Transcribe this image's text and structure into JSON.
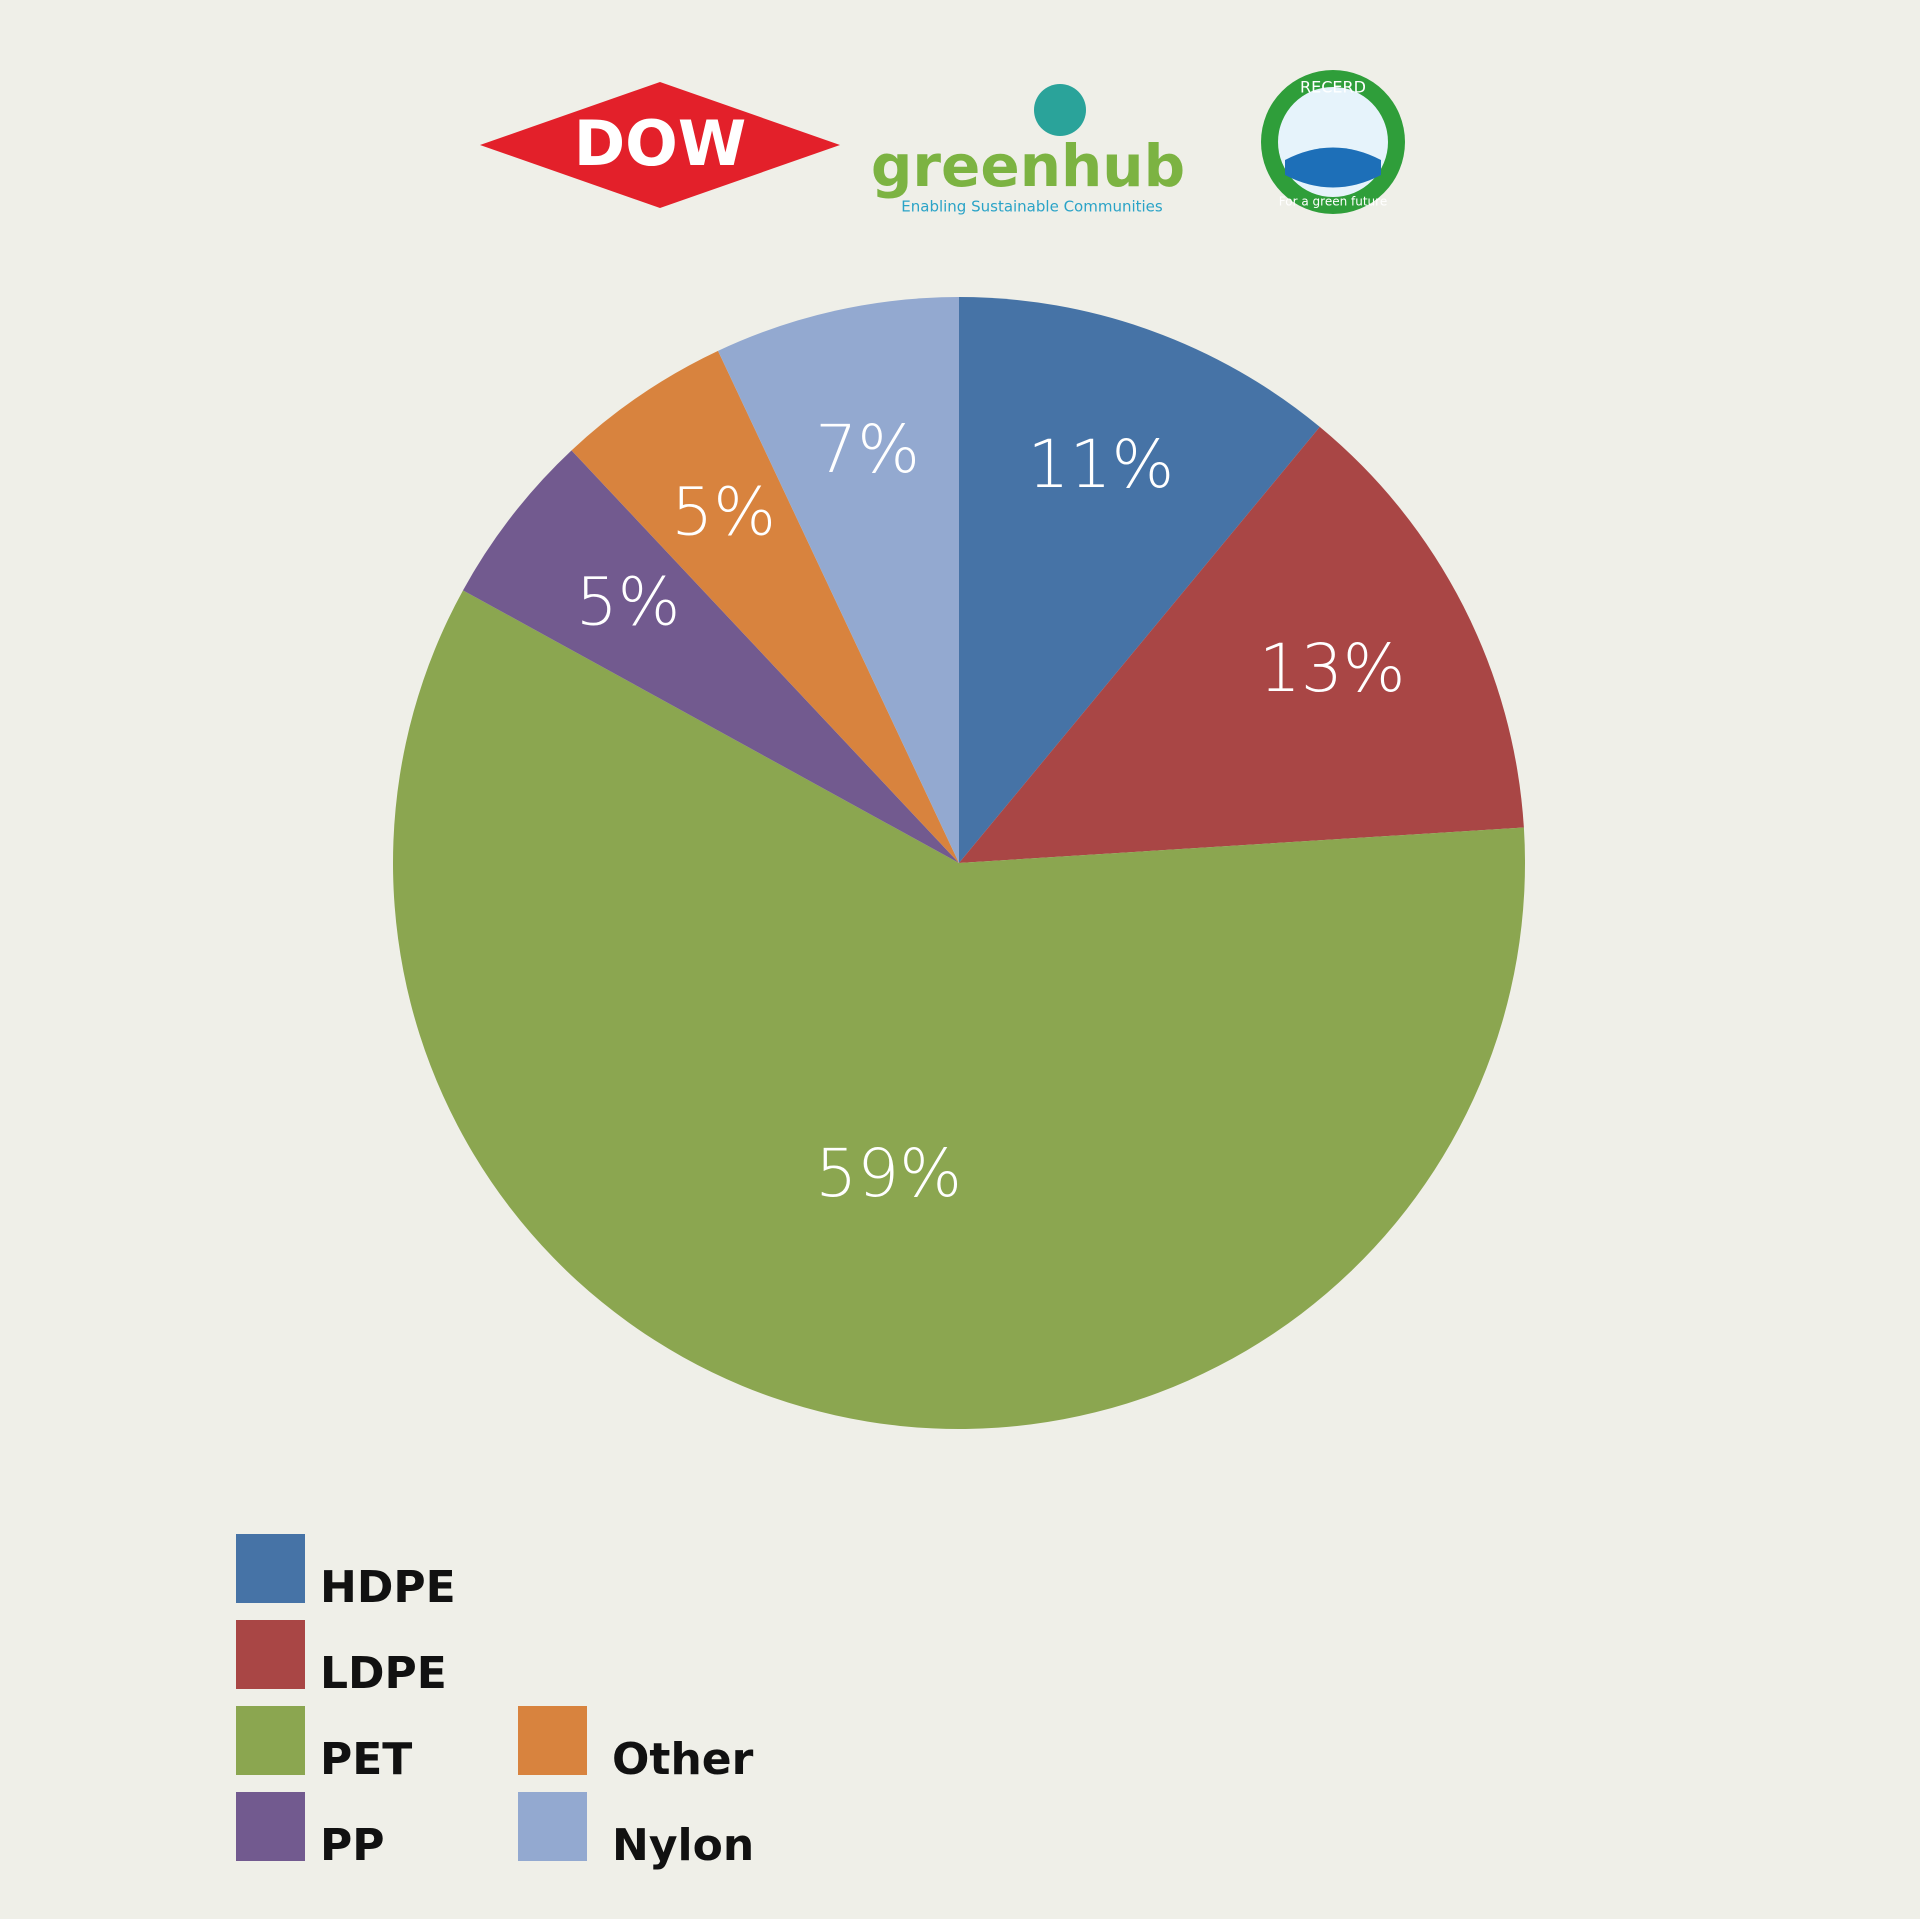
{
  "logos": {
    "dow": "DOW",
    "greenhub": "greenhub",
    "greenhub_tagline": "Enabling Sustainable Communities",
    "recerd": "RECERD",
    "recerd_tagline": "For a green future"
  },
  "chart_data": {
    "type": "pie",
    "categories": [
      "HDPE",
      "LDPE",
      "PET",
      "PP",
      "Other",
      "Nylon"
    ],
    "values": [
      11,
      13,
      59,
      5,
      5,
      7
    ],
    "value_labels": [
      "11%",
      "13%",
      "59%",
      "5%",
      "5%",
      "7%"
    ],
    "colors": [
      "#4673a6",
      "#a94645",
      "#8ba650",
      "#725a8f",
      "#d8833e",
      "#93a9d0"
    ],
    "legend": "bottom-left"
  }
}
